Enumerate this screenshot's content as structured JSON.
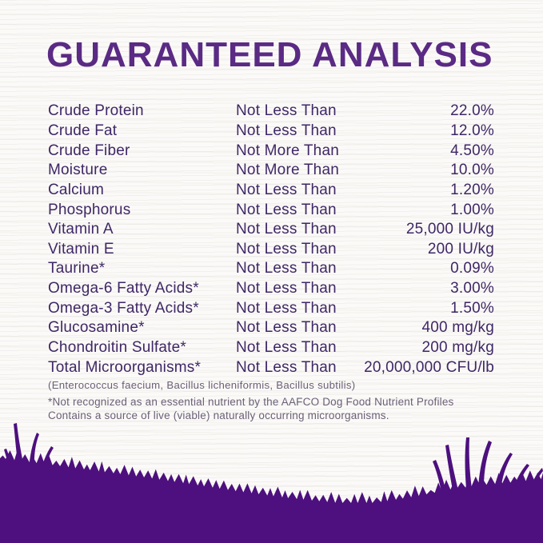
{
  "title": "GUARANTEED ANALYSIS",
  "table": {
    "rows": [
      {
        "name": "Crude Protein",
        "condition": "Not Less Than",
        "value": "22.0%"
      },
      {
        "name": "Crude Fat",
        "condition": "Not Less Than",
        "value": "12.0%"
      },
      {
        "name": "Crude Fiber",
        "condition": "Not More Than",
        "value": "4.50%"
      },
      {
        "name": "Moisture",
        "condition": "Not More Than",
        "value": "10.0%"
      },
      {
        "name": "Calcium",
        "condition": "Not Less Than",
        "value": "1.20%"
      },
      {
        "name": "Phosphorus",
        "condition": "Not Less Than",
        "value": "1.00%"
      },
      {
        "name": "Vitamin A",
        "condition": "Not Less Than",
        "value": "25,000 IU/kg"
      },
      {
        "name": "Vitamin E",
        "condition": "Not Less Than",
        "value": "200 IU/kg"
      },
      {
        "name": "Taurine*",
        "condition": "Not Less Than",
        "value": "0.09%"
      },
      {
        "name": "Omega-6 Fatty Acids*",
        "condition": "Not Less Than",
        "value": "3.00%"
      },
      {
        "name": "Omega-3 Fatty Acids*",
        "condition": "Not Less Than",
        "value": "1.50%"
      },
      {
        "name": "Glucosamine*",
        "condition": "Not Less Than",
        "value": "400 mg/kg"
      },
      {
        "name": "Chondroitin Sulfate*",
        "condition": "Not Less Than",
        "value": "200 mg/kg"
      },
      {
        "name": "Total Microorganisms*",
        "condition": "Not Less Than",
        "value": "20,000,000 CFU/lb"
      }
    ]
  },
  "footnotes": {
    "microorganisms_list": "(Enterococcus faecium, Bacillus licheniformis, Bacillus subtilis)",
    "aafco_note_line1": "*Not recognized as an essential nutrient by the AAFCO Dog Food Nutrient Profiles",
    "aafco_note_line2": "Contains a source of live (viable) naturally occurring microorganisms."
  },
  "colors": {
    "title": "#5a2a84",
    "body_text": "#3f2766",
    "footnote_text": "#6b6077",
    "grass": "#4d107e",
    "background": "#fbfaf8"
  }
}
